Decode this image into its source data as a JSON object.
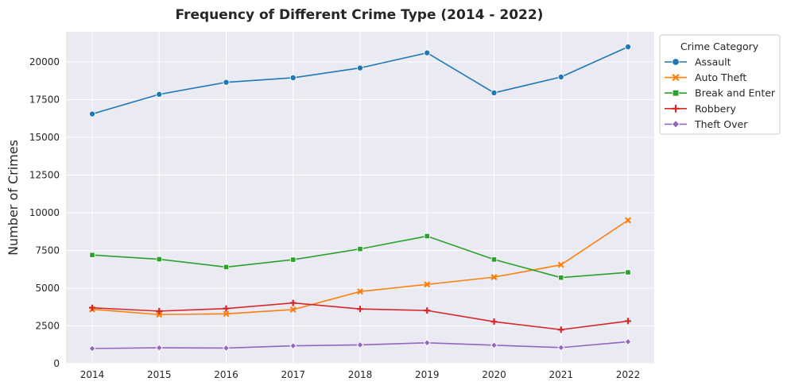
{
  "chart_data": {
    "type": "line",
    "title": "Frequency of Different Crime Type (2014 - 2022)",
    "xlabel": "",
    "ylabel": "Number of Crimes",
    "x": [
      2014,
      2015,
      2016,
      2017,
      2018,
      2019,
      2020,
      2021,
      2022
    ],
    "ylim": [
      0,
      22000
    ],
    "yticks": [
      0,
      2500,
      5000,
      7500,
      10000,
      12500,
      15000,
      17500,
      20000
    ],
    "grid": true,
    "legend": {
      "title": "Crime Category",
      "placement": "outside-top-right"
    },
    "series": [
      {
        "name": "Assault",
        "color": "#1f77b4",
        "marker": "circle",
        "values": [
          16550,
          17850,
          18650,
          18950,
          19600,
          20600,
          17950,
          19000,
          21000
        ]
      },
      {
        "name": "Auto Theft",
        "color": "#ff7f0e",
        "marker": "x",
        "values": [
          3600,
          3250,
          3300,
          3580,
          4780,
          5250,
          5730,
          6550,
          9500
        ]
      },
      {
        "name": "Break and Enter",
        "color": "#2ca02c",
        "marker": "square",
        "values": [
          7200,
          6920,
          6400,
          6890,
          7600,
          8450,
          6900,
          5700,
          6050
        ]
      },
      {
        "name": "Robbery",
        "color": "#d62728",
        "marker": "plus",
        "values": [
          3700,
          3480,
          3650,
          4020,
          3620,
          3520,
          2780,
          2250,
          2820
        ]
      },
      {
        "name": "Theft Over",
        "color": "#9467bd",
        "marker": "diamond",
        "values": [
          1000,
          1050,
          1030,
          1180,
          1240,
          1380,
          1220,
          1060,
          1450
        ]
      }
    ]
  }
}
